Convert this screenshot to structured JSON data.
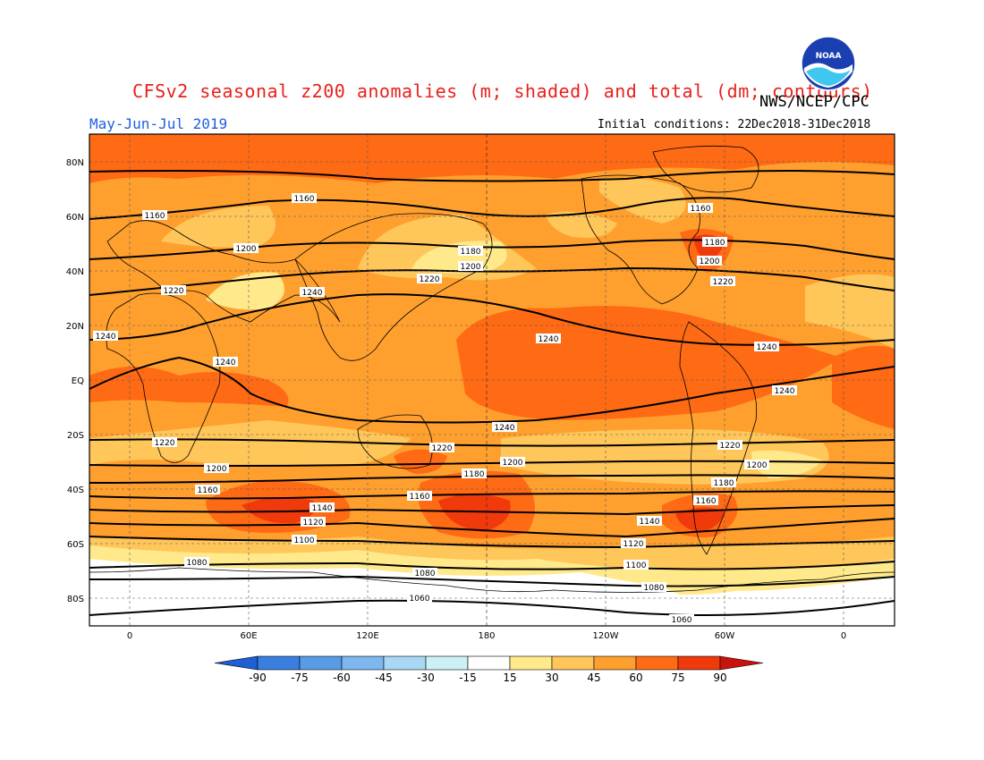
{
  "header": {
    "title": "CFSv2 seasonal z200 anomalies (m; shaded) and total (dm; contours)",
    "agency": "NWS/NCEP/CPC",
    "period": "May-Jun-Jul 2019",
    "initial_conditions": "Initial conditions: 22Dec2018-31Dec2018"
  },
  "logo": {
    "icon": "noaa-logo-icon",
    "text": "NOAA"
  },
  "axes": {
    "lat_labels": [
      "80N",
      "60N",
      "40N",
      "20N",
      "EQ",
      "20S",
      "40S",
      "60S",
      "80S"
    ],
    "lon_labels": [
      "0",
      "60E",
      "120E",
      "180",
      "120W",
      "60W",
      "0"
    ]
  },
  "contour_labels": [
    "1060",
    "1080",
    "1100",
    "1120",
    "1140",
    "1160",
    "1180",
    "1200",
    "1220",
    "1240"
  ],
  "colorbar": {
    "labels": [
      "-90",
      "-75",
      "-60",
      "-45",
      "-30",
      "-15",
      "15",
      "30",
      "45",
      "60",
      "75",
      "90"
    ],
    "colors": [
      "#1d5fd4",
      "#3a7fe0",
      "#5a9be6",
      "#7db7ee",
      "#a8d8f4",
      "#cdf0f6",
      "#ffffff",
      "#ffe98a",
      "#ffc65a",
      "#ffa02e",
      "#ff6a14",
      "#f03a0c",
      "#c8140a"
    ]
  }
}
